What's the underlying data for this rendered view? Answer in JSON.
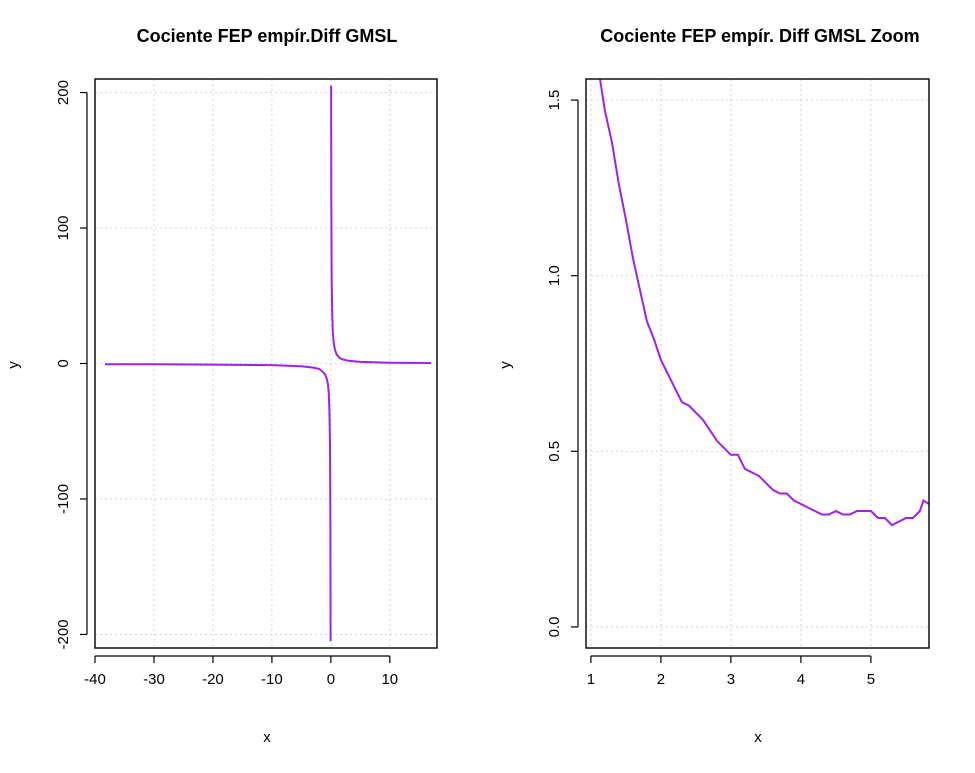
{
  "colors": {
    "series": "#a020f0",
    "grid": "#d3d3d3"
  },
  "chart_data": [
    {
      "type": "line",
      "title": "Cociente FEP empír.Diff GMSL",
      "xlabel": "x",
      "ylabel": "y",
      "xlim": [
        -40,
        18
      ],
      "ylim": [
        -210,
        210
      ],
      "xticks": [
        -40,
        -30,
        -20,
        -10,
        0,
        10
      ],
      "yticks": [
        -200,
        -100,
        0,
        100,
        200
      ],
      "grid": true,
      "series": [
        {
          "x": [
            -38.3,
            -30,
            -20,
            -10,
            -5,
            -3,
            -2,
            -1.5,
            -1,
            -0.7,
            -0.5,
            -0.35,
            -0.25,
            -0.15,
            -0.08,
            -0.04
          ],
          "y": [
            -0.5,
            -0.6,
            -0.8,
            -1.2,
            -2,
            -3,
            -4,
            -5.5,
            -8,
            -11,
            -15,
            -22,
            -35,
            -60,
            -120,
            -205
          ]
        },
        {
          "x": [
            0.04,
            0.08,
            0.15,
            0.25,
            0.35,
            0.5,
            0.7,
            1,
            1.5,
            2,
            3,
            5,
            10,
            17
          ],
          "y": [
            205,
            120,
            60,
            35,
            22,
            15,
            10,
            6.5,
            4,
            3,
            2,
            1.2,
            0.6,
            0.35
          ]
        }
      ]
    },
    {
      "type": "line",
      "title": "Cociente FEP empír. Diff GMSL Zoom",
      "xlabel": "x",
      "ylabel": "y",
      "xlim": [
        0.93,
        5.83
      ],
      "ylim": [
        -0.06,
        1.56
      ],
      "xticks": [
        1,
        2,
        3,
        4,
        5
      ],
      "yticks": [
        0.0,
        0.5,
        1.0,
        1.5
      ],
      "grid": true,
      "series": [
        {
          "x": [
            1.13,
            1.2,
            1.3,
            1.4,
            1.5,
            1.6,
            1.7,
            1.8,
            1.9,
            2.0,
            2.1,
            2.2,
            2.3,
            2.4,
            2.5,
            2.6,
            2.7,
            2.8,
            2.9,
            3.0,
            3.1,
            3.2,
            3.3,
            3.4,
            3.5,
            3.6,
            3.7,
            3.8,
            3.9,
            4.0,
            4.1,
            4.2,
            4.3,
            4.4,
            4.5,
            4.6,
            4.7,
            4.8,
            4.9,
            5.0,
            5.1,
            5.2,
            5.3,
            5.4,
            5.5,
            5.6,
            5.7,
            5.75,
            5.83
          ],
          "y": [
            1.56,
            1.47,
            1.38,
            1.26,
            1.16,
            1.05,
            0.96,
            0.87,
            0.82,
            0.76,
            0.72,
            0.68,
            0.64,
            0.63,
            0.61,
            0.59,
            0.56,
            0.53,
            0.51,
            0.49,
            0.49,
            0.45,
            0.44,
            0.43,
            0.41,
            0.39,
            0.38,
            0.38,
            0.36,
            0.35,
            0.34,
            0.33,
            0.32,
            0.32,
            0.33,
            0.32,
            0.32,
            0.33,
            0.33,
            0.33,
            0.31,
            0.31,
            0.29,
            0.3,
            0.31,
            0.31,
            0.33,
            0.36,
            0.35
          ]
        }
      ]
    }
  ]
}
